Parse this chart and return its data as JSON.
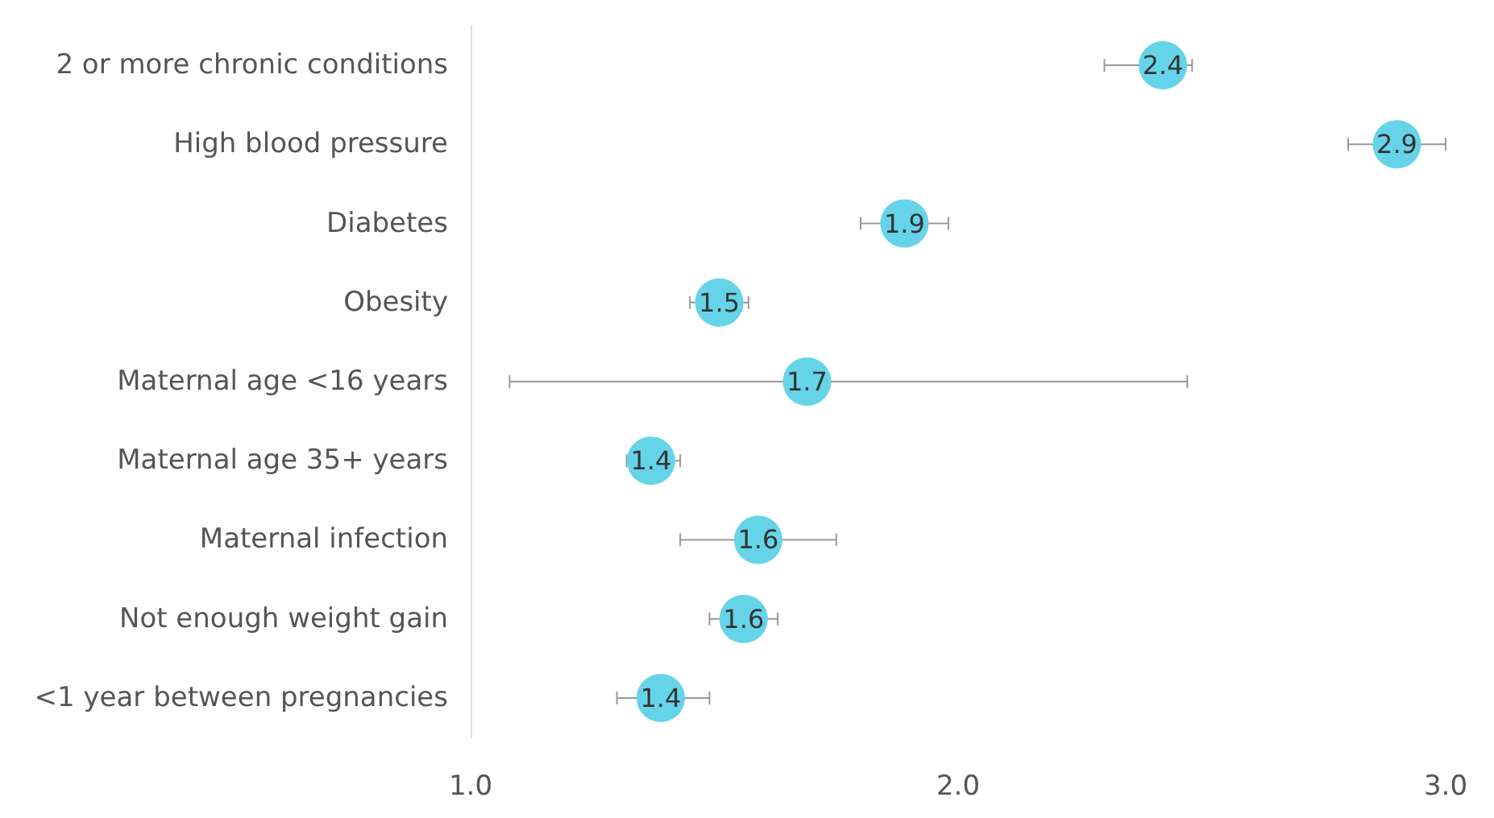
{
  "chart_data": {
    "type": "scatter",
    "orientation": "horizontal",
    "categories": [
      "2 or more chronic conditions",
      "High blood pressure",
      "Diabetes",
      "Obesity",
      "Maternal age <16 years",
      "Maternal age 35+ years",
      "Maternal infection",
      "Not enough weight gain",
      "<1 year between pregnancies"
    ],
    "series": [
      {
        "color": "#66d4e8",
        "values": [
          2.42,
          2.9,
          1.89,
          1.51,
          1.69,
          1.37,
          1.59,
          1.56,
          1.39
        ],
        "value_labels": [
          "2.4",
          "2.9",
          "1.9",
          "1.5",
          "1.7",
          "1.4",
          "1.6",
          "1.6",
          "1.4"
        ],
        "errors": [
          [
            2.3,
            2.48
          ],
          [
            2.8,
            3.0
          ],
          [
            1.8,
            1.98
          ],
          [
            1.45,
            1.57
          ],
          [
            1.08,
            2.47
          ],
          [
            1.32,
            1.43
          ],
          [
            1.43,
            1.75
          ],
          [
            1.49,
            1.63
          ],
          [
            1.3,
            1.49
          ]
        ]
      }
    ],
    "xlim": [
      1.0,
      3.0
    ],
    "xticks": [
      {
        "value": 1.0,
        "label": "1.0"
      },
      {
        "value": 2.0,
        "label": "2.0"
      },
      {
        "value": 3.0,
        "label": "3.0"
      }
    ],
    "grid": false,
    "marker": "circle"
  }
}
